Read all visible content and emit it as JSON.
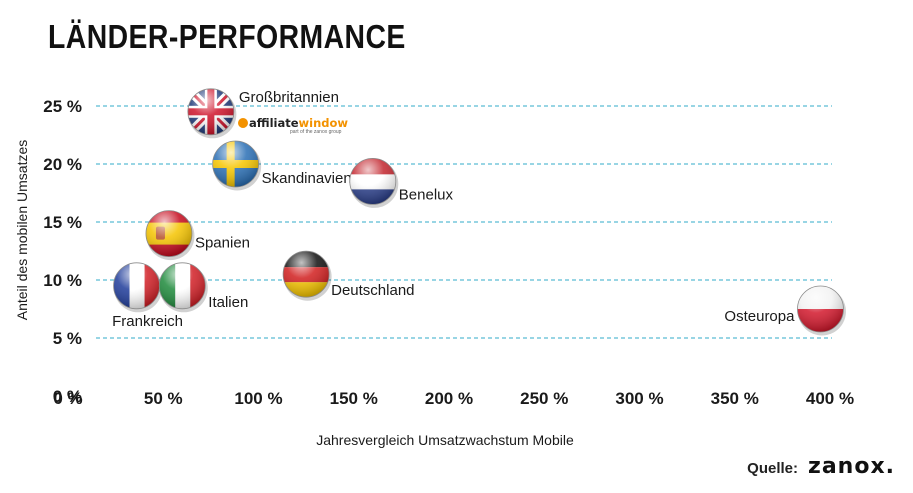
{
  "title": "LÄNDER-PERFORMANCE",
  "source_label": "Quelle:",
  "source_logo": "zanox.",
  "annotation_logo": {
    "text_dark": "affiliate",
    "text_accent": "window",
    "subtext": "part of the zanox group",
    "icon": "affiliate-window-icon"
  },
  "colors": {
    "gridline": "#5bbcd3",
    "text": "#1a1a1a"
  },
  "chart_data": {
    "type": "scatter",
    "title": "LÄNDER-PERFORMANCE",
    "xlabel": "Jahresvergleich Umsatzwachstum Mobile",
    "ylabel": "Anteil des mobilen Umsatzes",
    "xlim": [
      0,
      400
    ],
    "ylim": [
      0,
      25
    ],
    "x_ticks": [
      "0 %",
      "50 %",
      "100 %",
      "150 %",
      "200 %",
      "250 %",
      "300 %",
      "350 %",
      "400 %"
    ],
    "y_ticks": [
      "0 %",
      "5 %",
      "10 %",
      "15 %",
      "20 %",
      "25 %"
    ],
    "grid": "horizontal dashed",
    "marker": "country flag",
    "points": [
      {
        "label": "Großbritannien",
        "x": 75,
        "y": 24.5,
        "flag": "uk-flag-icon"
      },
      {
        "label": "Skandinavien",
        "x": 88,
        "y": 20,
        "flag": "sweden-flag-icon"
      },
      {
        "label": "Benelux",
        "x": 160,
        "y": 18.5,
        "flag": "netherlands-flag-icon"
      },
      {
        "label": "Spanien",
        "x": 53,
        "y": 14,
        "flag": "spain-flag-icon"
      },
      {
        "label": "Deutschland",
        "x": 125,
        "y": 10.5,
        "flag": "germany-flag-icon"
      },
      {
        "label": "Italien",
        "x": 60,
        "y": 9.5,
        "flag": "italy-flag-icon"
      },
      {
        "label": "Frankreich",
        "x": 36,
        "y": 9.5,
        "flag": "france-flag-icon"
      },
      {
        "label": "Osteuropa",
        "x": 395,
        "y": 7.5,
        "flag": "poland-flag-icon"
      }
    ]
  }
}
